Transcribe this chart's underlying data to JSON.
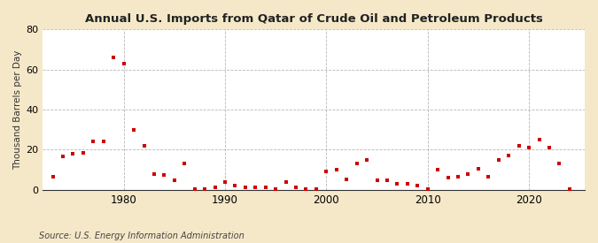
{
  "title": "Annual U.S. Imports from Qatar of Crude Oil and Petroleum Products",
  "ylabel": "Thousand Barrels per Day",
  "source": "Source: U.S. Energy Information Administration",
  "fig_bg_color": "#f5e8c8",
  "plot_bg_color": "#ffffff",
  "marker_color": "#cc0000",
  "grid_color": "#999999",
  "spine_color": "#333333",
  "years": [
    1973,
    1974,
    1975,
    1976,
    1977,
    1978,
    1979,
    1980,
    1981,
    1982,
    1983,
    1984,
    1985,
    1986,
    1987,
    1988,
    1989,
    1990,
    1991,
    1992,
    1993,
    1994,
    1995,
    1996,
    1997,
    1998,
    1999,
    2000,
    2001,
    2002,
    2003,
    2004,
    2005,
    2006,
    2007,
    2008,
    2009,
    2010,
    2011,
    2012,
    2013,
    2014,
    2015,
    2016,
    2017,
    2018,
    2019,
    2020,
    2021,
    2022,
    2023,
    2024
  ],
  "values": [
    6.5,
    16.5,
    18.0,
    18.5,
    24.0,
    24.0,
    66.0,
    63.0,
    30.0,
    22.0,
    8.0,
    7.5,
    4.5,
    13.0,
    0.5,
    0.5,
    1.0,
    4.0,
    2.0,
    1.0,
    1.0,
    1.0,
    0.5,
    4.0,
    1.0,
    0.5,
    0.5,
    9.0,
    10.0,
    5.0,
    13.0,
    15.0,
    4.5,
    4.5,
    3.0,
    3.0,
    2.0,
    0.5,
    10.0,
    6.0,
    6.5,
    8.0,
    10.5,
    6.5,
    15.0,
    17.0,
    22.0,
    21.0,
    25.0,
    21.0,
    13.0,
    0.5
  ],
  "ylim": [
    0,
    80
  ],
  "yticks": [
    0,
    20,
    40,
    60,
    80
  ],
  "xticks": [
    1980,
    1990,
    2000,
    2010,
    2020
  ],
  "xlim": [
    1972,
    2025.5
  ]
}
